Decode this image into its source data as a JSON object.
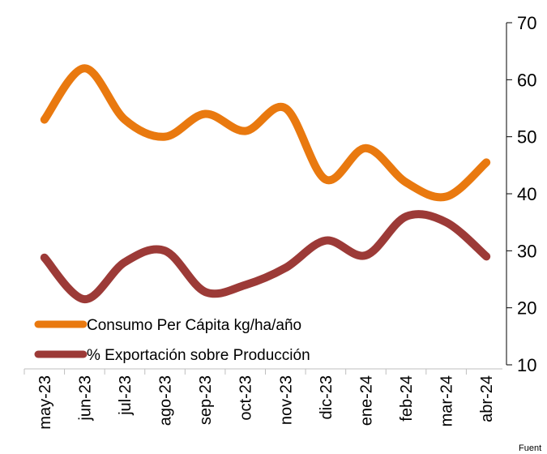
{
  "chart_data": {
    "type": "line",
    "categories": [
      "may-23",
      "jun-23",
      "jul-23",
      "ago-23",
      "sep-23",
      "oct-23",
      "nov-23",
      "dic-23",
      "ene-24",
      "feb-24",
      "mar-24",
      "abr-24"
    ],
    "series": [
      {
        "name": "Consumo Per Cápita kg/ha/año",
        "color": "#e9790f",
        "values": [
          53,
          62,
          53,
          50,
          54,
          51,
          55,
          42.5,
          48,
          42,
          39.5,
          45.5
        ]
      },
      {
        "name": "% Exportación sobre Producción",
        "color": "#9c3a37",
        "values": [
          28.8,
          21.5,
          28,
          30,
          22.8,
          24,
          27,
          31.8,
          29.2,
          36,
          35,
          29
        ]
      }
    ],
    "ylim": [
      10,
      70
    ],
    "yticks": [
      10,
      20,
      30,
      40,
      50,
      60,
      70
    ],
    "axis_side": "right",
    "legend": "lower left",
    "smooth": true,
    "note": "Fuent"
  }
}
